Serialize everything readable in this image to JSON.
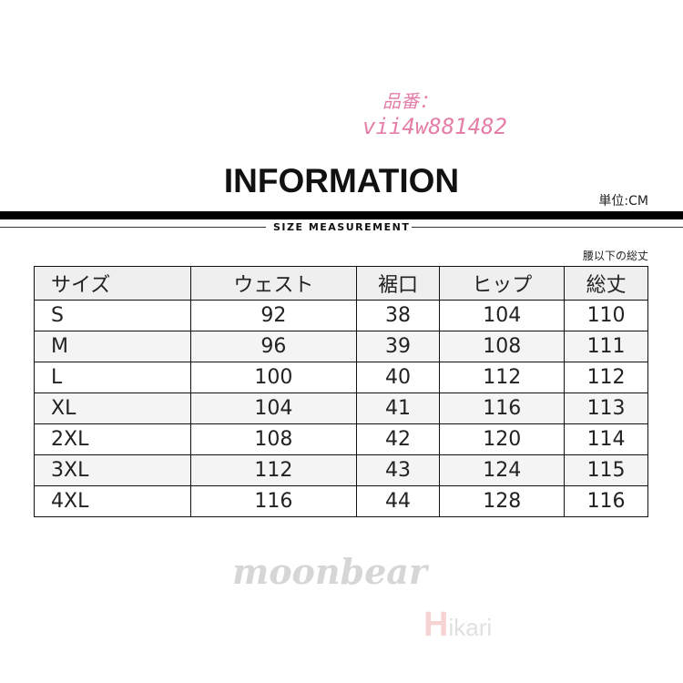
{
  "header": {
    "title": "INFORMATION",
    "unit": "単位:CM",
    "subtitle": "SIZE MEASUREMENT",
    "note": "腰以下の総丈"
  },
  "table": {
    "columns": [
      "サイズ",
      "ウェスト",
      "裾口",
      "ヒップ",
      "総丈"
    ],
    "rows": [
      [
        "S",
        "92",
        "38",
        "104",
        "110"
      ],
      [
        "M",
        "96",
        "39",
        "108",
        "111"
      ],
      [
        "L",
        "100",
        "40",
        "112",
        "112"
      ],
      [
        "XL",
        "104",
        "41",
        "116",
        "113"
      ],
      [
        "2XL",
        "108",
        "42",
        "120",
        "114"
      ],
      [
        "3XL",
        "112",
        "43",
        "124",
        "115"
      ],
      [
        "4XL",
        "116",
        "44",
        "128",
        "116"
      ]
    ]
  },
  "watermarks": {
    "product_label": "品番：",
    "product_code": "vii4w881482",
    "brand": "moonbear",
    "logo_h": "H",
    "logo_rest": "ikari"
  },
  "colors": {
    "watermark_pink": "#e0679a",
    "header_bg": "#efefef"
  }
}
